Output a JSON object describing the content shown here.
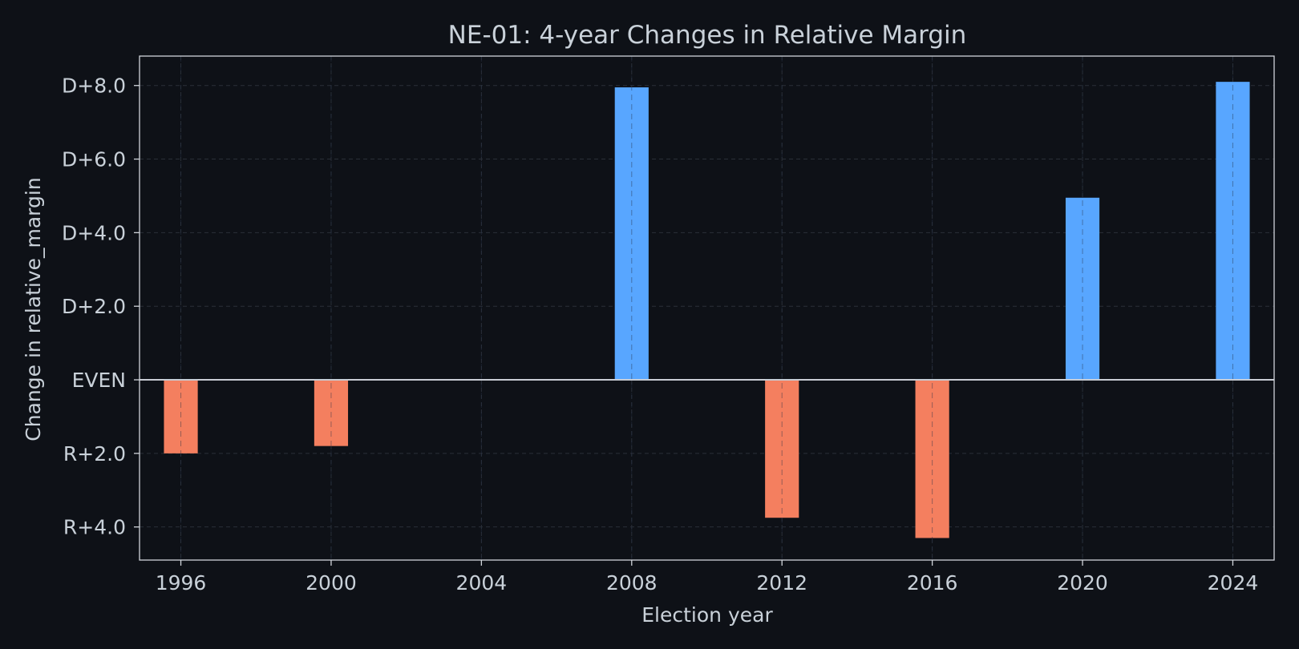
{
  "colors": {
    "background": "#0e1117",
    "text": "#c9d1d9",
    "axis": "#d0d4da",
    "grid": "#2a2f38",
    "zero_line": "#c8ccd4",
    "dem_bar": "#58a6ff",
    "rep_bar": "#f47f5f"
  },
  "chart_data": {
    "type": "bar",
    "title": "NE-01: 4-year Changes in Relative Margin",
    "xlabel": "Election year",
    "ylabel": "Change in relative_margin",
    "xlim": [
      1994.9,
      2025.1
    ],
    "ylim": [
      -4.9,
      8.8
    ],
    "x_ticks": [
      1996,
      2000,
      2004,
      2008,
      2012,
      2016,
      2020,
      2024
    ],
    "y_ticks": [
      {
        "value": 8,
        "label": "D+8.0"
      },
      {
        "value": 6,
        "label": "D+6.0"
      },
      {
        "value": 4,
        "label": "D+4.0"
      },
      {
        "value": 2,
        "label": "D+2.0"
      },
      {
        "value": 0,
        "label": "EVEN"
      },
      {
        "value": -2,
        "label": "R+2.0"
      },
      {
        "value": -4,
        "label": "R+4.0"
      }
    ],
    "grid": true,
    "legend": "none",
    "bars": [
      {
        "year": 1996,
        "value": -2.0
      },
      {
        "year": 2000,
        "value": -1.8
      },
      {
        "year": 2008,
        "value": 7.95
      },
      {
        "year": 2012,
        "value": -3.75
      },
      {
        "year": 2016,
        "value": -4.3
      },
      {
        "year": 2020,
        "value": 4.95
      },
      {
        "year": 2024,
        "value": 8.1
      }
    ]
  }
}
